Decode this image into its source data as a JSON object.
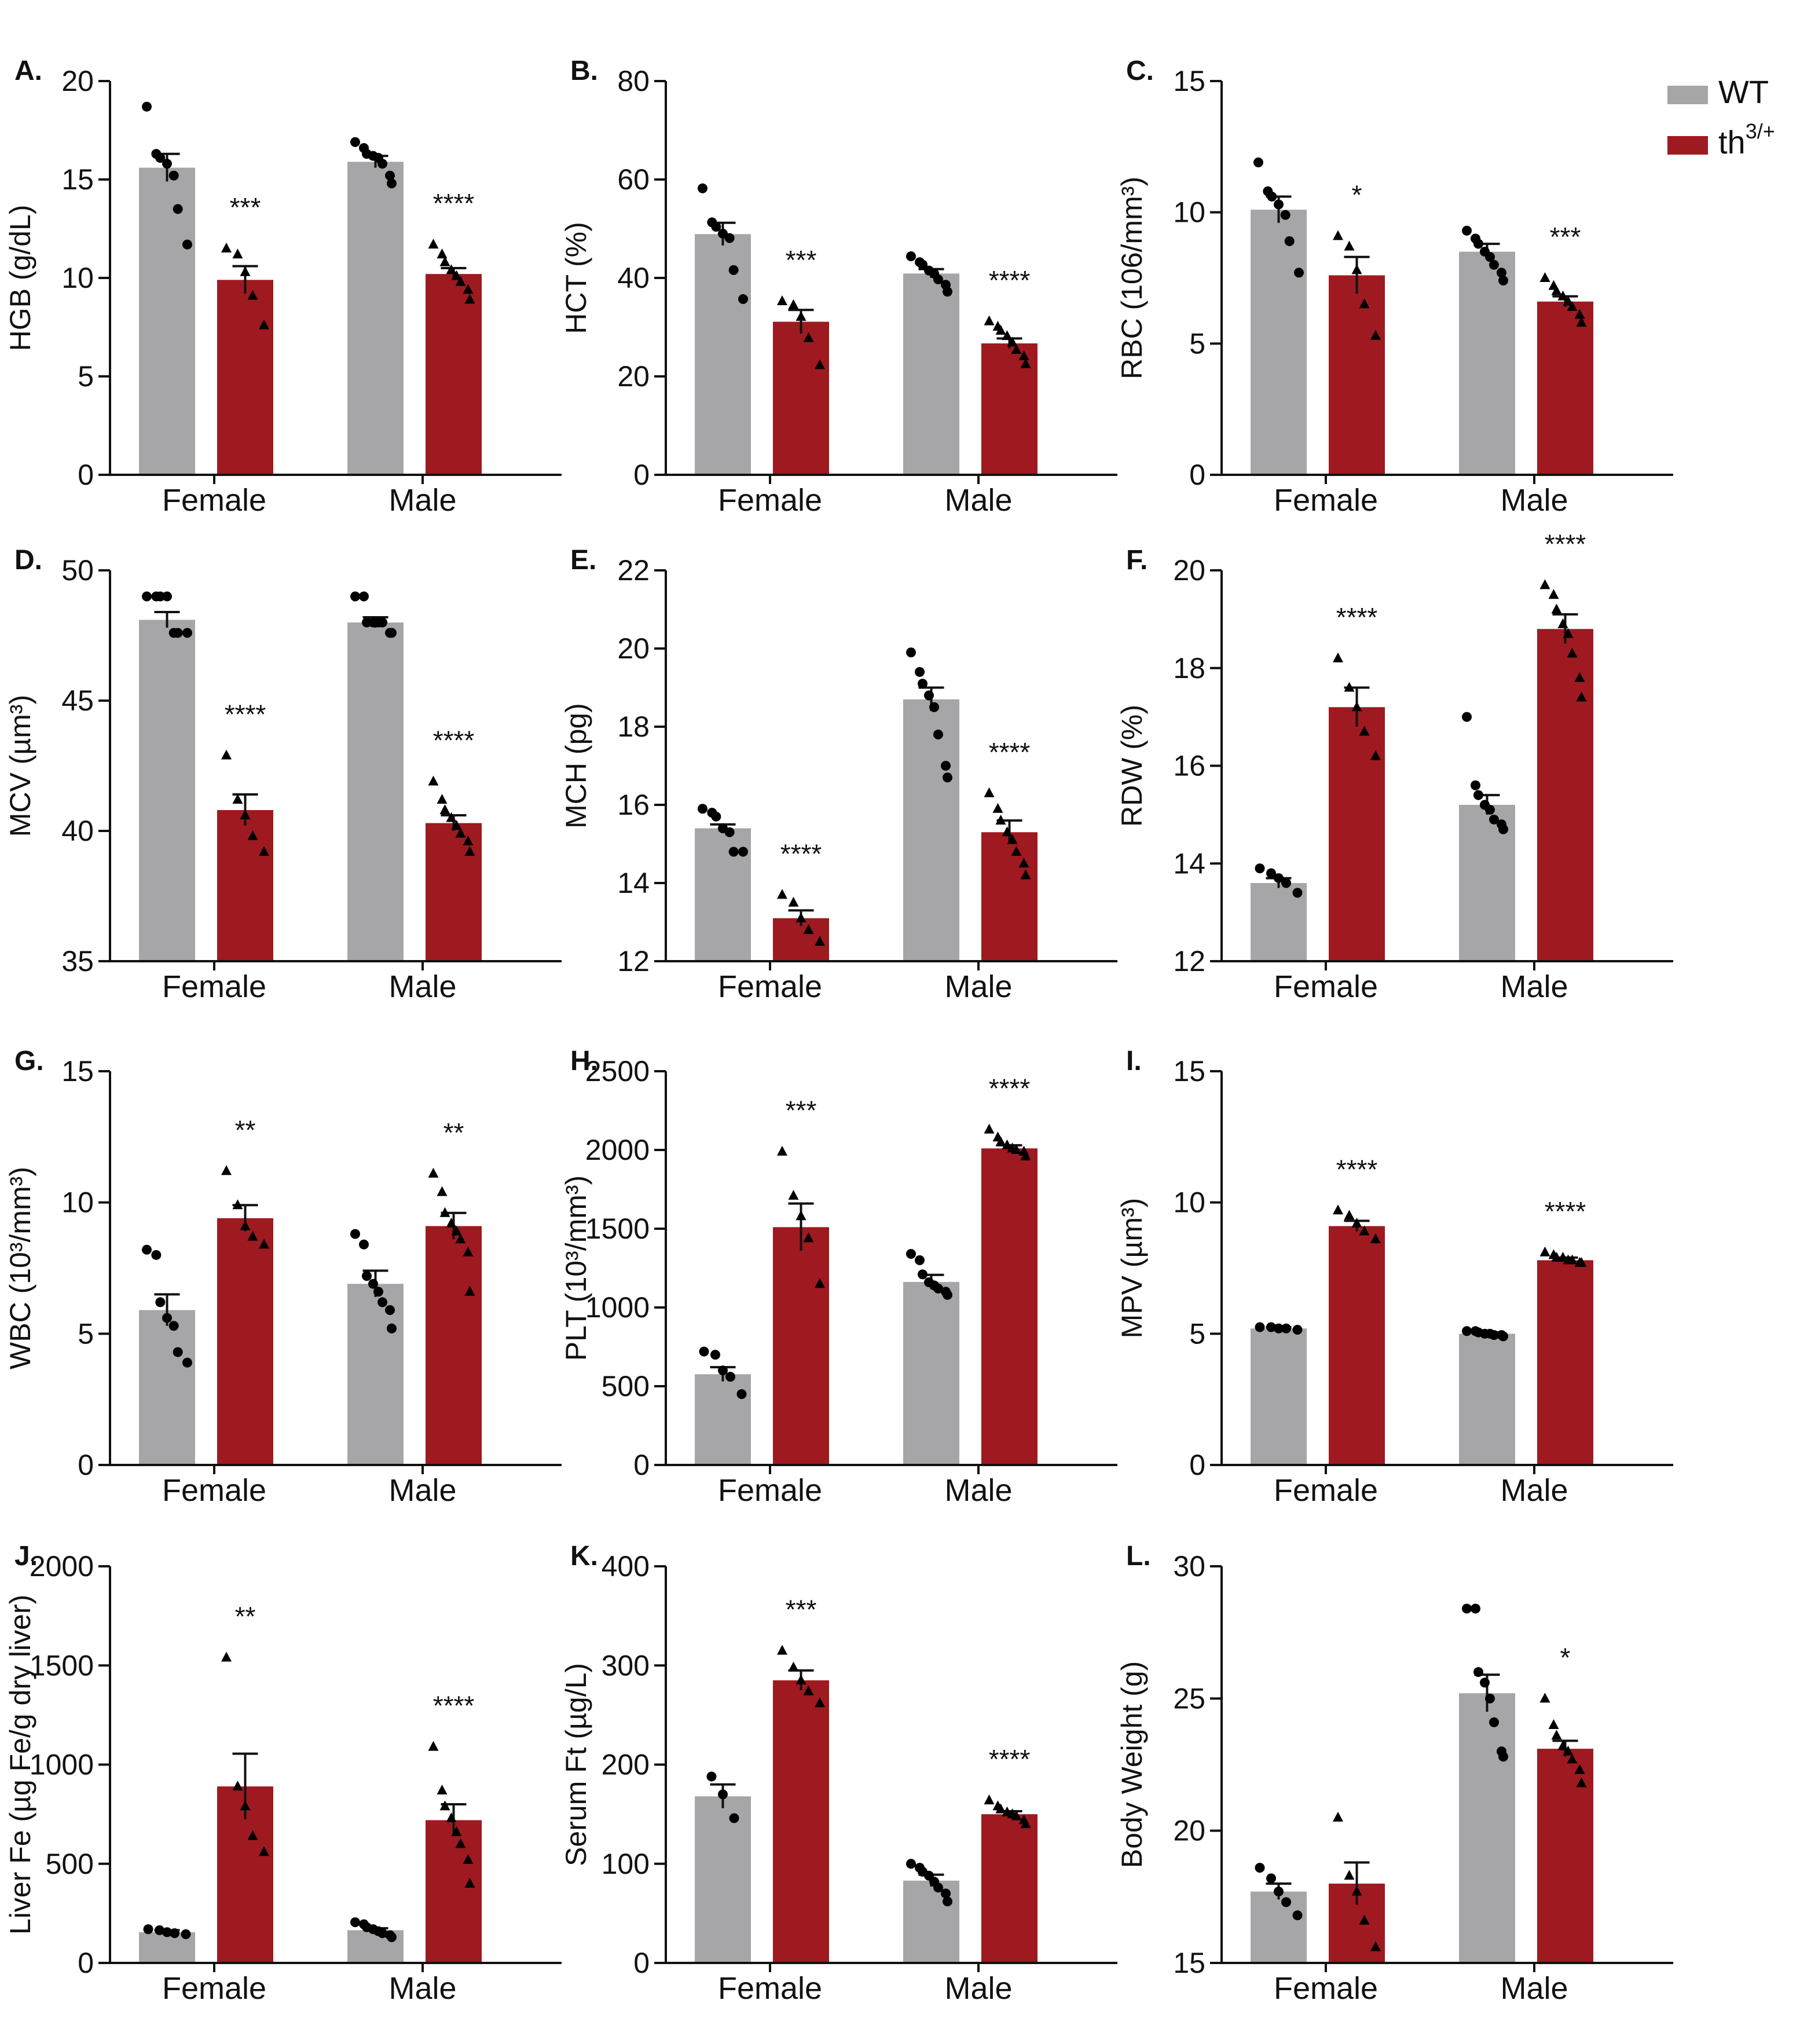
{
  "colors": {
    "wt": "#a6a6a8",
    "th": "#9e1a20",
    "axis": "#111111"
  },
  "legend": [
    {
      "label": "WT",
      "color_key": "wt"
    },
    {
      "label": "th",
      "sup": "3/+",
      "color_key": "th"
    }
  ],
  "chart_data": [
    {
      "id": "A",
      "panel_label": "A.",
      "type": "bar",
      "ylabel": "HGB (g/dL)",
      "yticks": [
        0,
        5,
        10,
        15,
        20
      ],
      "ylim": [
        0,
        20
      ],
      "categories": [
        "Female",
        "Male"
      ],
      "series": [
        {
          "name": "WT",
          "values": [
            15.6,
            15.9
          ],
          "errors": [
            0.7,
            0.3
          ],
          "points": [
            [
              18.7,
              16.3,
              16.1,
              15.8,
              15.2,
              13.5,
              11.7
            ],
            [
              16.9,
              16.6,
              16.3,
              16.2,
              16.1,
              15.8,
              15.2,
              14.8
            ]
          ]
        },
        {
          "name": "th3/+",
          "values": [
            9.9,
            10.2
          ],
          "errors": [
            0.7,
            0.3
          ],
          "points": [
            [
              11.5,
              11.2,
              10.3,
              9.1,
              7.6
            ],
            [
              11.7,
              11.2,
              10.8,
              10.4,
              10.1,
              9.8,
              9.4,
              8.9
            ]
          ]
        }
      ],
      "significance": [
        "***",
        "****"
      ]
    },
    {
      "id": "B",
      "panel_label": "B.",
      "type": "bar",
      "ylabel": "HCT (%)",
      "yticks": [
        0,
        20,
        40,
        60,
        80
      ],
      "ylim": [
        0,
        80
      ],
      "categories": [
        "Female",
        "Male"
      ],
      "series": [
        {
          "name": "WT",
          "values": [
            48.9,
            40.9
          ],
          "errors": [
            2.3,
            0.9
          ],
          "points": [
            [
              58.2,
              51.3,
              50.4,
              49.0,
              48.1,
              41.6,
              35.7
            ],
            [
              44.4,
              43.2,
              42.7,
              41.5,
              40.9,
              39.7,
              38.6,
              37.2
            ]
          ]
        },
        {
          "name": "th3/+",
          "values": [
            31.1,
            26.7
          ],
          "errors": [
            2.4,
            1.0
          ],
          "points": [
            [
              35.3,
              34.5,
              32.1,
              27.8,
              22.3
            ],
            [
              31.2,
              30.1,
              29.3,
              28.2,
              26.9,
              25.4,
              24.1,
              22.5
            ]
          ]
        }
      ],
      "significance": [
        "***",
        "****"
      ]
    },
    {
      "id": "C",
      "panel_label": "C.",
      "type": "bar",
      "ylabel": "RBC (106/mm³)",
      "yticks": [
        0,
        5,
        10,
        15
      ],
      "ylim": [
        0,
        15
      ],
      "categories": [
        "Female",
        "Male"
      ],
      "series": [
        {
          "name": "WT",
          "values": [
            10.1,
            8.5
          ],
          "errors": [
            0.5,
            0.3
          ],
          "points": [
            [
              11.9,
              10.8,
              10.6,
              10.3,
              9.9,
              8.9,
              7.7
            ],
            [
              9.3,
              9.0,
              8.8,
              8.5,
              8.3,
              8.0,
              7.7,
              7.4
            ]
          ]
        },
        {
          "name": "th3/+",
          "values": [
            7.6,
            6.6
          ],
          "errors": [
            0.7,
            0.2
          ],
          "points": [
            [
              9.1,
              8.7,
              7.8,
              6.5,
              5.3
            ],
            [
              7.5,
              7.2,
              7.0,
              6.8,
              6.6,
              6.4,
              6.1,
              5.8
            ]
          ]
        }
      ],
      "significance": [
        "*",
        "***"
      ]
    },
    {
      "id": "D",
      "panel_label": "D.",
      "type": "bar",
      "ylabel": "MCV (µm³)",
      "yticks": [
        35,
        40,
        45,
        50
      ],
      "ylim": [
        35,
        50
      ],
      "categories": [
        "Female",
        "Male"
      ],
      "series": [
        {
          "name": "WT",
          "values": [
            48.1,
            48.0
          ],
          "errors": [
            0.3,
            0.2
          ],
          "points": [
            [
              49.0,
              49.0,
              49.0,
              49.0,
              47.6,
              47.6,
              47.6
            ],
            [
              49.0,
              49.0,
              48.0,
              48.0,
              48.0,
              48.0,
              47.6,
              47.6
            ]
          ]
        },
        {
          "name": "th3/+",
          "values": [
            40.8,
            40.3
          ],
          "errors": [
            0.6,
            0.3
          ],
          "points": [
            [
              42.9,
              41.2,
              40.6,
              39.8,
              39.2
            ],
            [
              41.9,
              41.2,
              40.8,
              40.5,
              40.2,
              39.9,
              39.6,
              39.2
            ]
          ]
        }
      ],
      "significance": [
        "****",
        "****"
      ]
    },
    {
      "id": "E",
      "panel_label": "E.",
      "type": "bar",
      "ylabel": "MCH (pg)",
      "yticks": [
        12,
        14,
        16,
        18,
        20,
        22
      ],
      "ylim": [
        12,
        22
      ],
      "categories": [
        "Female",
        "Male"
      ],
      "series": [
        {
          "name": "WT",
          "values": [
            15.4,
            18.7
          ],
          "errors": [
            0.1,
            0.3
          ],
          "points": [
            [
              15.9,
              15.8,
              15.7,
              15.4,
              15.3,
              14.8,
              14.8
            ],
            [
              19.9,
              19.4,
              19.1,
              18.8,
              18.5,
              17.8,
              17.0,
              16.7
            ]
          ]
        },
        {
          "name": "th3/+",
          "values": [
            13.1,
            15.3
          ],
          "errors": [
            0.2,
            0.3
          ],
          "points": [
            [
              13.7,
              13.5,
              13.1,
              12.8,
              12.5
            ],
            [
              16.3,
              15.9,
              15.6,
              15.3,
              15.1,
              14.8,
              14.5,
              14.2
            ]
          ]
        }
      ],
      "significance": [
        "****",
        "****"
      ]
    },
    {
      "id": "F",
      "panel_label": "F.",
      "type": "bar",
      "ylabel": "RDW (%)",
      "yticks": [
        12,
        14,
        16,
        18,
        20
      ],
      "ylim": [
        12,
        20
      ],
      "categories": [
        "Female",
        "Male"
      ],
      "series": [
        {
          "name": "WT",
          "values": [
            13.6,
            15.2
          ],
          "errors": [
            0.1,
            0.2
          ],
          "points": [
            [
              13.9,
              13.8,
              13.7,
              13.6,
              13.4
            ],
            [
              17.0,
              15.6,
              15.4,
              15.2,
              15.1,
              14.9,
              14.8,
              14.7
            ]
          ]
        },
        {
          "name": "th3/+",
          "values": [
            17.2,
            18.8
          ],
          "errors": [
            0.4,
            0.3
          ],
          "points": [
            [
              18.2,
              17.6,
              17.2,
              16.7,
              16.2
            ],
            [
              19.7,
              19.5,
              19.2,
              18.9,
              18.7,
              18.3,
              17.8,
              17.4
            ]
          ]
        }
      ],
      "significance": [
        "****",
        "****"
      ]
    },
    {
      "id": "G",
      "panel_label": "G.",
      "type": "bar",
      "ylabel": "WBC (10³/mm³)",
      "yticks": [
        0,
        5,
        10,
        15
      ],
      "ylim": [
        0,
        15
      ],
      "categories": [
        "Female",
        "Male"
      ],
      "series": [
        {
          "name": "WT",
          "values": [
            5.9,
            6.9
          ],
          "errors": [
            0.6,
            0.5
          ],
          "points": [
            [
              8.2,
              8.0,
              6.2,
              5.6,
              5.3,
              4.3,
              3.9
            ],
            [
              8.8,
              8.4,
              7.2,
              6.9,
              6.6,
              6.2,
              5.9,
              5.2
            ]
          ]
        },
        {
          "name": "th3/+",
          "values": [
            9.4,
            9.1
          ],
          "errors": [
            0.5,
            0.5
          ],
          "points": [
            [
              11.2,
              9.9,
              9.1,
              8.7,
              8.4
            ],
            [
              11.1,
              10.4,
              9.6,
              9.2,
              8.9,
              8.6,
              8.1,
              6.6
            ]
          ]
        }
      ],
      "significance": [
        "**",
        "**"
      ]
    },
    {
      "id": "H",
      "panel_label": "H.",
      "type": "bar",
      "ylabel": "PLT (10³/mm³)",
      "yticks": [
        0,
        500,
        1000,
        1500,
        2000,
        2500
      ],
      "ylim": [
        0,
        2500
      ],
      "categories": [
        "Female",
        "Male"
      ],
      "series": [
        {
          "name": "WT",
          "values": [
            576,
            1162
          ],
          "errors": [
            45,
            45
          ],
          "points": [
            [
              720,
              700,
              600,
              560,
              450
            ],
            [
              1340,
              1300,
              1210,
              1160,
              1140,
              1120,
              1100,
              1080
            ]
          ]
        },
        {
          "name": "th3/+",
          "values": [
            1510,
            2010
          ],
          "errors": [
            150,
            20
          ],
          "points": [
            [
              1990,
              1710,
              1580,
              1440,
              1150
            ],
            [
              2130,
              2080,
              2050,
              2030,
              2010,
              2000,
              1990,
              1960
            ]
          ]
        }
      ],
      "significance": [
        "***",
        "****"
      ]
    },
    {
      "id": "I",
      "panel_label": "I.",
      "type": "bar",
      "ylabel": "MPV (µm³)",
      "yticks": [
        0,
        5,
        10,
        15
      ],
      "ylim": [
        0,
        15
      ],
      "categories": [
        "Female",
        "Male"
      ],
      "series": [
        {
          "name": "WT",
          "values": [
            5.2,
            5.0
          ],
          "errors": [
            0.05,
            0.05
          ],
          "points": [
            [
              5.25,
              5.25,
              5.2,
              5.2,
              5.15
            ],
            [
              5.1,
              5.1,
              5.05,
              5.0,
              5.0,
              4.95,
              4.95,
              4.9
            ]
          ]
        },
        {
          "name": "th3/+",
          "values": [
            9.1,
            7.8
          ],
          "errors": [
            0.2,
            0.1
          ],
          "points": [
            [
              9.7,
              9.5,
              9.2,
              8.9,
              8.6
            ],
            [
              8.1,
              8.0,
              7.9,
              7.9,
              7.8,
              7.8,
              7.7,
              7.7
            ]
          ]
        }
      ],
      "significance": [
        "****",
        "****"
      ]
    },
    {
      "id": "J",
      "panel_label": "J.",
      "type": "bar",
      "ylabel": "Liver Fe (µg Fe/g dry liver)",
      "yticks": [
        0,
        500,
        1000,
        1500,
        2000
      ],
      "ylim": [
        0,
        2000
      ],
      "categories": [
        "Female",
        "Male"
      ],
      "series": [
        {
          "name": "WT",
          "values": [
            155,
            165
          ],
          "errors": [
            10,
            10
          ],
          "points": [
            [
              170,
              165,
              155,
              150,
              145
            ],
            [
              205,
              195,
              180,
              170,
              160,
              150,
              140,
              130
            ]
          ]
        },
        {
          "name": "th3/+",
          "values": [
            890,
            720
          ],
          "errors": [
            165,
            80
          ],
          "points": [
            [
              1540,
              890,
              790,
              640,
              560
            ],
            [
              1090,
              870,
              790,
              730,
              660,
              600,
              520,
              400
            ]
          ]
        }
      ],
      "significance": [
        "**",
        "****"
      ]
    },
    {
      "id": "K",
      "panel_label": "K.",
      "type": "bar",
      "ylabel": "Serum Ft (µg/L)",
      "yticks": [
        0,
        100,
        200,
        300,
        400
      ],
      "ylim": [
        0,
        400
      ],
      "categories": [
        "Female",
        "Male"
      ],
      "series": [
        {
          "name": "WT",
          "values": [
            168,
            83
          ],
          "errors": [
            12,
            6
          ],
          "points": [
            [
              188,
              170,
              146
            ],
            [
              100,
              96,
              92,
              88,
              82,
              76,
              70,
              62
            ]
          ]
        },
        {
          "name": "th3/+",
          "values": [
            285,
            150
          ],
          "errors": [
            10,
            3
          ],
          "points": [
            [
              315,
              298,
              285,
              274,
              262
            ],
            [
              164,
              158,
              155,
              152,
              150,
              148,
              144,
              140
            ]
          ]
        }
      ],
      "significance": [
        "***",
        "****"
      ]
    },
    {
      "id": "L",
      "panel_label": "L.",
      "type": "bar",
      "ylabel": "Body Weight (g)",
      "yticks": [
        15,
        20,
        25,
        30
      ],
      "ylim": [
        15,
        30
      ],
      "categories": [
        "Female",
        "Male"
      ],
      "series": [
        {
          "name": "WT",
          "values": [
            17.7,
            25.2
          ],
          "errors": [
            0.3,
            0.7
          ],
          "points": [
            [
              18.6,
              18.2,
              17.7,
              17.3,
              16.8
            ],
            [
              28.4,
              28.4,
              26.0,
              25.6,
              25.0,
              24.1,
              23.0,
              22.8
            ]
          ]
        },
        {
          "name": "th3/+",
          "values": [
            18.0,
            23.1
          ],
          "errors": [
            0.8,
            0.3
          ],
          "points": [
            [
              20.5,
              18.3,
              17.7,
              16.6,
              15.6
            ],
            [
              25.0,
              24.0,
              23.6,
              23.2,
              23.0,
              22.7,
              22.3,
              21.8
            ]
          ]
        }
      ],
      "significance": [
        "",
        "*"
      ]
    }
  ]
}
